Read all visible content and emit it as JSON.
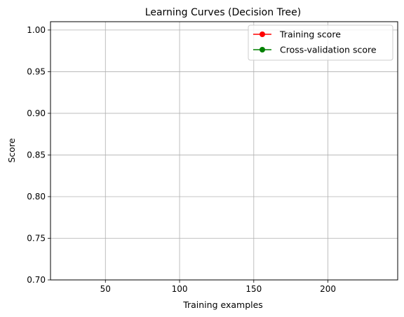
{
  "chart_data": {
    "type": "line",
    "title": "Learning Curves (Decision Tree)",
    "xlabel": "Training examples",
    "ylabel": "Score",
    "xlim": [
      13,
      247
    ],
    "ylim": [
      0.7,
      1.01
    ],
    "xticks": [
      50,
      100,
      150,
      200
    ],
    "yticks": [
      0.7,
      0.75,
      0.8,
      0.85,
      0.9,
      0.95,
      1.0
    ],
    "xtick_labels": [
      "50",
      "100",
      "150",
      "200"
    ],
    "ytick_labels": [
      "0.70",
      "0.75",
      "0.80",
      "0.85",
      "0.90",
      "0.95",
      "1.00"
    ],
    "grid": true,
    "legend_position": "top-right",
    "series": [
      {
        "name": "Training score",
        "color": "#ff0000",
        "marker": "circle",
        "x": [],
        "y": []
      },
      {
        "name": "Cross-validation score",
        "color": "#008000",
        "marker": "circle",
        "x": [],
        "y": []
      }
    ]
  }
}
